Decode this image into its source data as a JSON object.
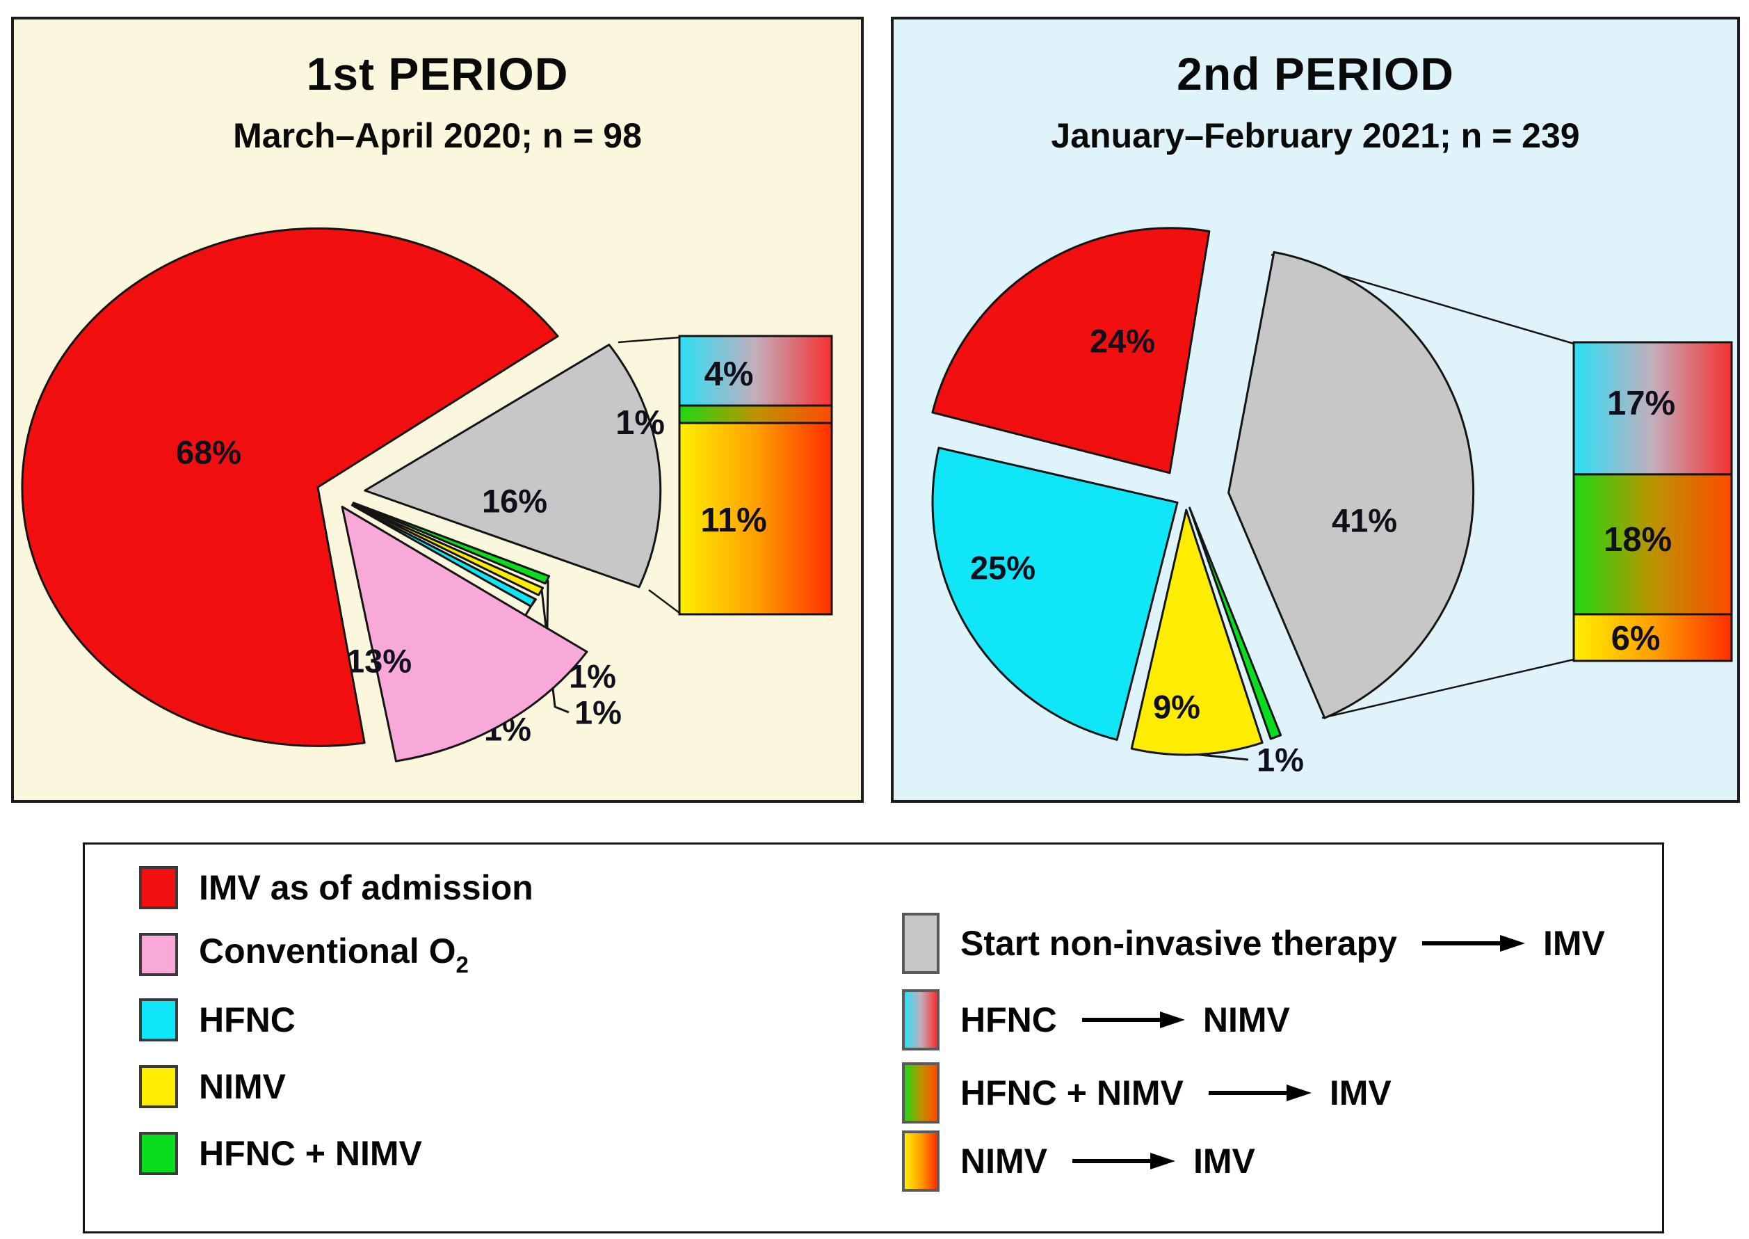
{
  "panels": [
    {
      "title": "1st PERIOD",
      "subtitle": "March–April 2020; n = 98",
      "bg": "#FAF7DC"
    },
    {
      "title": "2nd PERIOD",
      "subtitle": "January–February 2021; n = 239",
      "bg": "#DFF3FA"
    }
  ],
  "chart_data": [
    {
      "type": "pie",
      "title": "1st PERIOD",
      "subtitle": "March–April 2020; n = 98",
      "n": 98,
      "order": "clockwise",
      "start_angle_deg": 35,
      "slices": [
        {
          "label": "Start non-invasive therapy → IMV",
          "value": 16,
          "color": "#C7C7C7"
        },
        {
          "label": "HFNC + NIMV → IMV",
          "value": 1,
          "color": "#0ADC1E"
        },
        {
          "label": "NIMV → IMV",
          "value": 1,
          "color": "#FFED00"
        },
        {
          "label": "HFNC → NIMV",
          "value": 1,
          "color": "#0FE6F7"
        },
        {
          "label": "Conventional O2",
          "value": 13,
          "color": "#F8A9DA"
        },
        {
          "label": "IMV as of admission",
          "value": 68,
          "color": "#F10F0F"
        }
      ],
      "breakdown": {
        "of": "Start non-invasive therapy → IMV",
        "total": 16,
        "segments": [
          {
            "label": "HFNC → NIMV",
            "value": 4,
            "gradient": "cyan_red"
          },
          {
            "label": "HFNC + NIMV → IMV",
            "value": 1,
            "gradient": "green_red"
          },
          {
            "label": "NIMV → IMV",
            "value": 11,
            "gradient": "yellow_red"
          }
        ]
      }
    },
    {
      "type": "pie",
      "title": "2nd PERIOD",
      "subtitle": "January–February 2021; n = 239",
      "n": 239,
      "order": "clockwise",
      "start_angle_deg": 80,
      "slices": [
        {
          "label": "Start non-invasive therapy → IMV",
          "value": 41,
          "color": "#C7C7C7"
        },
        {
          "label": "HFNC + NIMV → IMV",
          "value": 1,
          "color": "#0ADC1E"
        },
        {
          "label": "NIMV",
          "value": 9,
          "color": "#FFED00"
        },
        {
          "label": "HFNC",
          "value": 25,
          "color": "#0FE6F7"
        },
        {
          "label": "IMV as of admission",
          "value": 24,
          "color": "#F10F0F"
        }
      ],
      "breakdown": {
        "of": "Start non-invasive therapy → IMV",
        "total": 41,
        "segments": [
          {
            "label": "HFNC → NIMV",
            "value": 17,
            "gradient": "cyan_red"
          },
          {
            "label": "HFNC + NIMV → IMV",
            "value": 18,
            "gradient": "green_red"
          },
          {
            "label": "NIMV → IMV",
            "value": 6,
            "gradient": "yellow_red"
          }
        ]
      }
    }
  ],
  "legend": {
    "left": [
      {
        "label": "IMV as of admission",
        "color": "#F10F0F"
      },
      {
        "label_main": "Conventional O",
        "label_sub": "2",
        "color": "#F8A9DA"
      },
      {
        "label": "HFNC",
        "color": "#0FE6F7"
      },
      {
        "label": "NIMV",
        "color": "#FFED00"
      },
      {
        "label": "HFNC + NIMV",
        "color": "#0ADC1E"
      }
    ],
    "right": [
      {
        "from": "Start non-invasive therapy",
        "to": "IMV",
        "color": "#C8C8C8"
      },
      {
        "from": "HFNC",
        "to": "NIMV",
        "gradient": "cyan_red"
      },
      {
        "from": "HFNC + NIMV",
        "to": "IMV",
        "gradient": "green_red"
      },
      {
        "from": "NIMV",
        "to": "IMV",
        "gradient": "yellow_red"
      }
    ]
  },
  "colors": {
    "red": "#F10F0F",
    "pink": "#F8A9DA",
    "cyan": "#0FE6F7",
    "yellow": "#FFED00",
    "green": "#0ADC1E",
    "gray": "#C7C7C7",
    "label_text": "#10101c",
    "panel1_bg": "#FAF7DC",
    "panel2_bg": "#DFF3FA",
    "gradients": {
      "cyan_red": [
        "#2BE0F7",
        "#C3AEBC",
        "#F53131"
      ],
      "green_red": [
        "#1ED911",
        "#BB9400",
        "#FF4A00"
      ],
      "yellow_red": [
        "#FFEF00",
        "#FFA000",
        "#FF2E00"
      ]
    }
  }
}
